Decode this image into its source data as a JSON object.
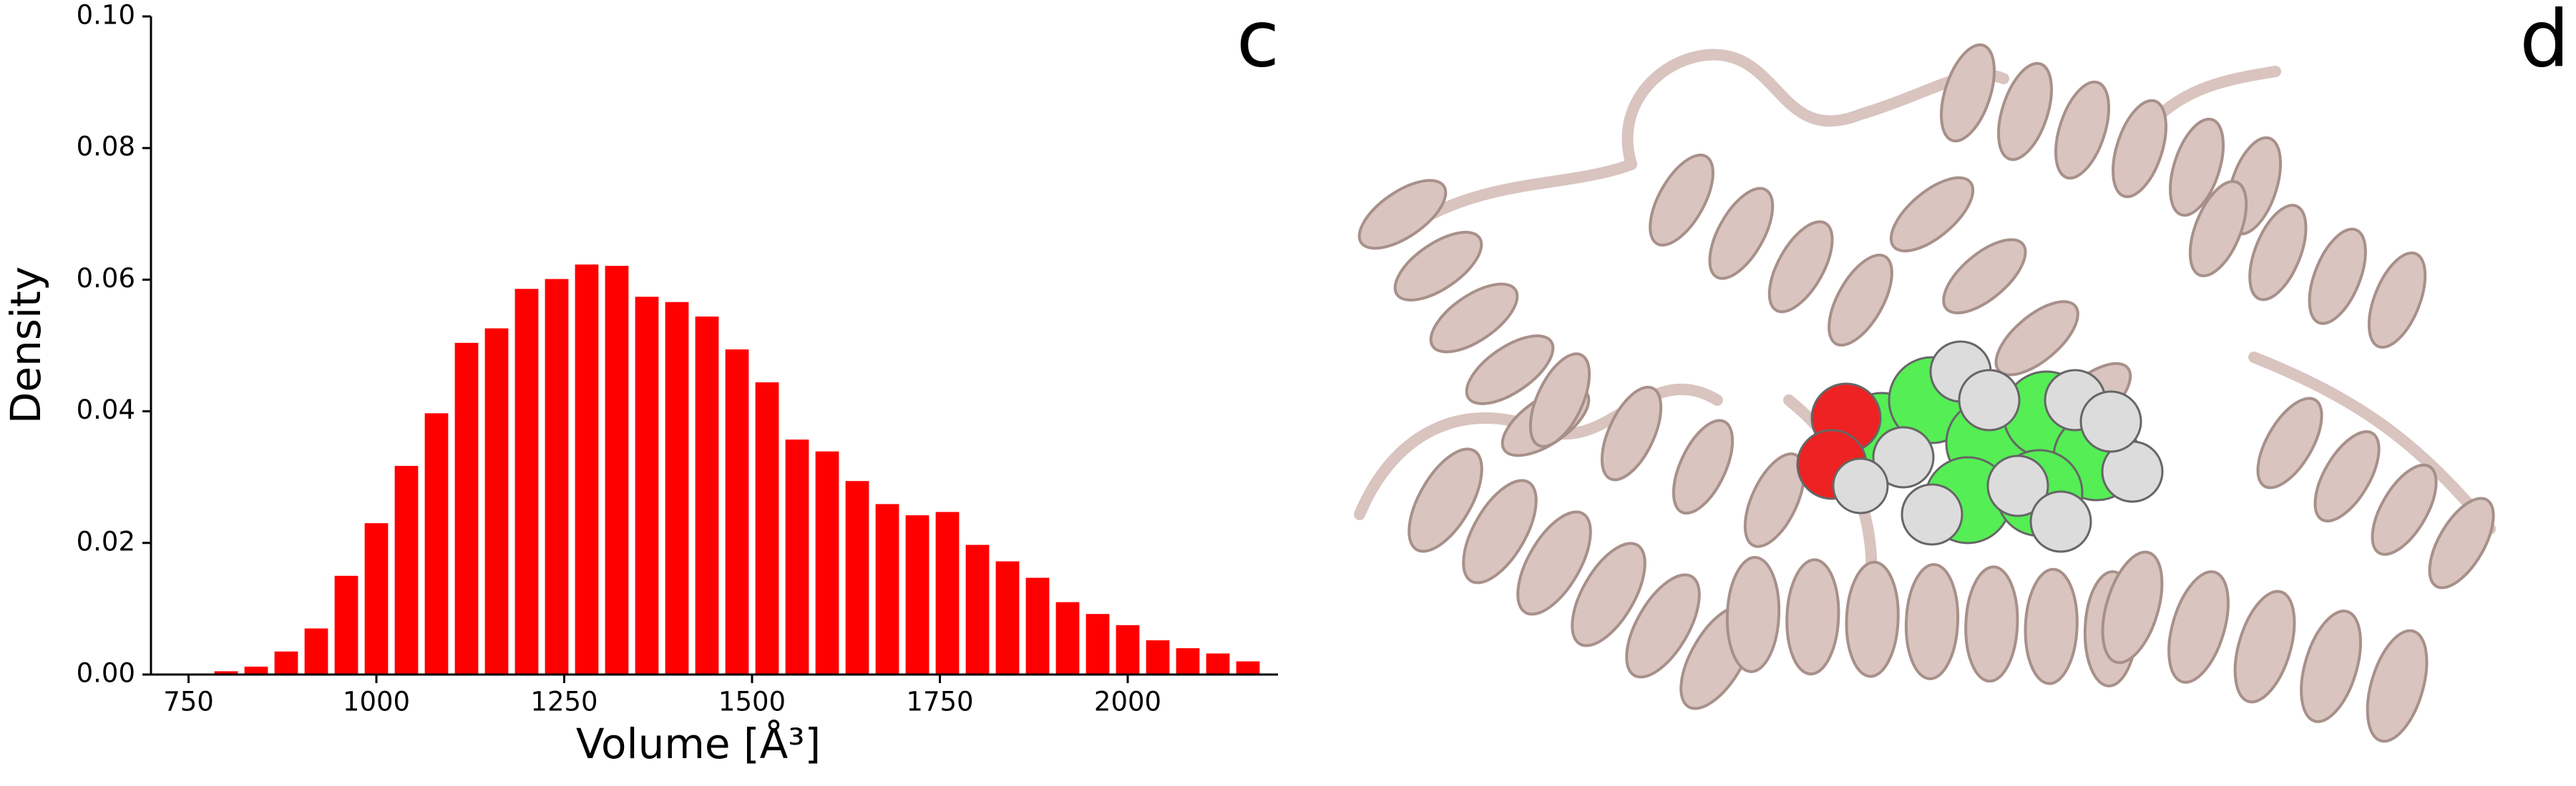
{
  "chart_data": {
    "type": "histogram",
    "xlabel": "Volume [Å³]",
    "ylabel": "Density",
    "panel_labels": [
      "c",
      "d"
    ],
    "bins": [
      780,
      820,
      860,
      900,
      940,
      980,
      1020,
      1060,
      1100,
      1140,
      1180,
      1220,
      1260,
      1300,
      1340,
      1380,
      1420,
      1460,
      1500,
      1540,
      1580,
      1620,
      1660,
      1700,
      1740,
      1780,
      1820,
      1860,
      1900,
      1940,
      1980,
      2020,
      2060,
      2100,
      2140,
      2180
    ],
    "values": [
      0.0005,
      0.0012,
      0.0035,
      0.007,
      0.015,
      0.023,
      0.0317,
      0.0397,
      0.0504,
      0.0526,
      0.0586,
      0.0601,
      0.0623,
      0.0621,
      0.0574,
      0.0566,
      0.0544,
      0.0494,
      0.0444,
      0.0357,
      0.0339,
      0.0294,
      0.0259,
      0.0242,
      0.0247,
      0.0197,
      0.0172,
      0.0147,
      0.011,
      0.0092,
      0.0075,
      0.0052,
      0.004,
      0.0032,
      0.002
    ],
    "color": "#ff0000",
    "xlim": [
      700,
      2200
    ],
    "xticks": [
      750,
      1000,
      1250,
      1500,
      1750,
      2000
    ],
    "ylim": [
      0,
      0.1
    ],
    "yticks": [
      {
        "value": 0,
        "label": "0.00"
      },
      {
        "value": 0.02,
        "label": "0.02"
      },
      {
        "value": 0.04,
        "label": "0.04"
      },
      {
        "value": 0.06,
        "label": "0.06"
      },
      {
        "value": 0.08,
        "label": "0.08"
      },
      {
        "value": 0.1,
        "label": "0.10"
      }
    ]
  }
}
